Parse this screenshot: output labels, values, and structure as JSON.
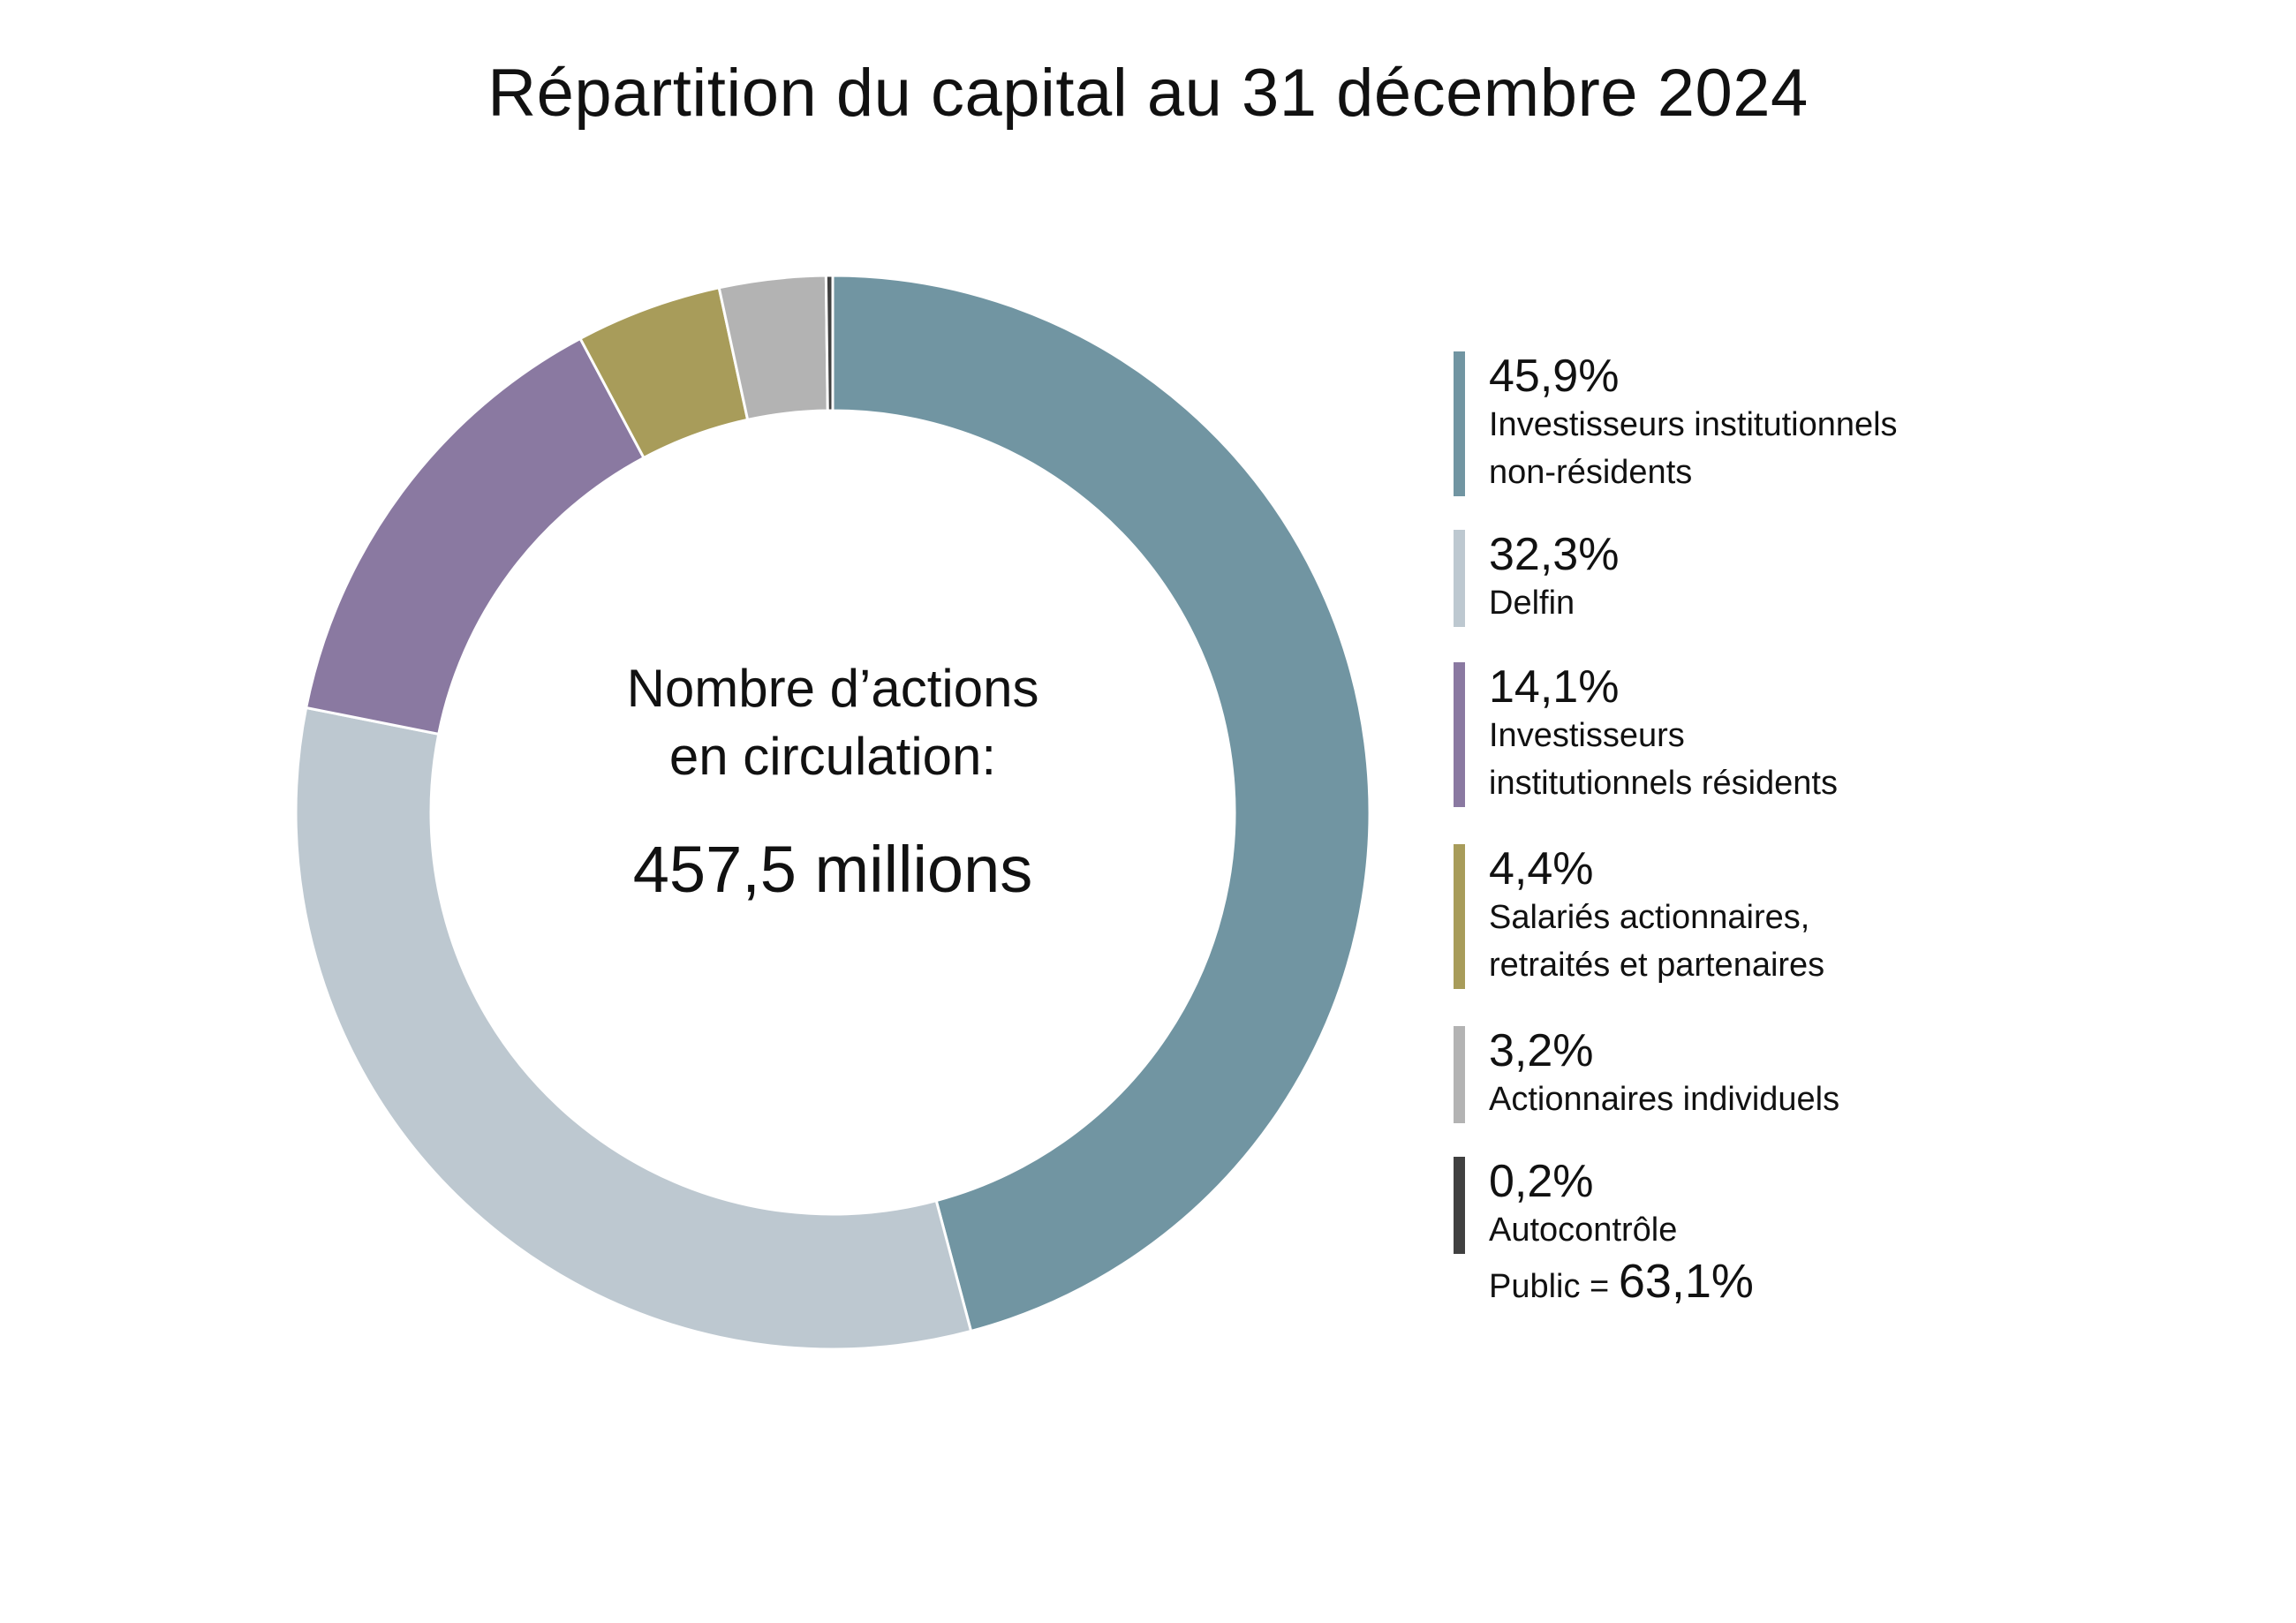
{
  "title": "Répartition du capital au 31 décembre 2024",
  "center": {
    "line1": "Nombre d’actions",
    "line2": "en circulation:",
    "value": "457,5 millions"
  },
  "chart_data": {
    "type": "pie",
    "donut": true,
    "title": "Répartition du capital au 31 décembre 2024",
    "values": [
      45.9,
      32.3,
      14.1,
      4.4,
      3.2,
      0.2
    ],
    "value_labels": [
      "45,9%",
      "32,3%",
      "14,1%",
      "4,4%",
      "3,2%",
      "0,2%"
    ],
    "labels": [
      "Investisseurs institutionnels\nnon-résidents",
      "Delfin",
      "Investisseurs\ninstitutionnels résidents",
      "Salariés actionnaires,\nretraités et partenaires",
      "Actionnaires individuels",
      "Autocontrôle"
    ],
    "colors": [
      "#7195a2",
      "#bdc8d0",
      "#8a79a1",
      "#a89c5a",
      "#b3b3b3",
      "#404040"
    ],
    "start": "top, clockwise",
    "legend_position": "right"
  },
  "footer": {
    "public_label": "Public =",
    "public_value": "63,1%"
  }
}
